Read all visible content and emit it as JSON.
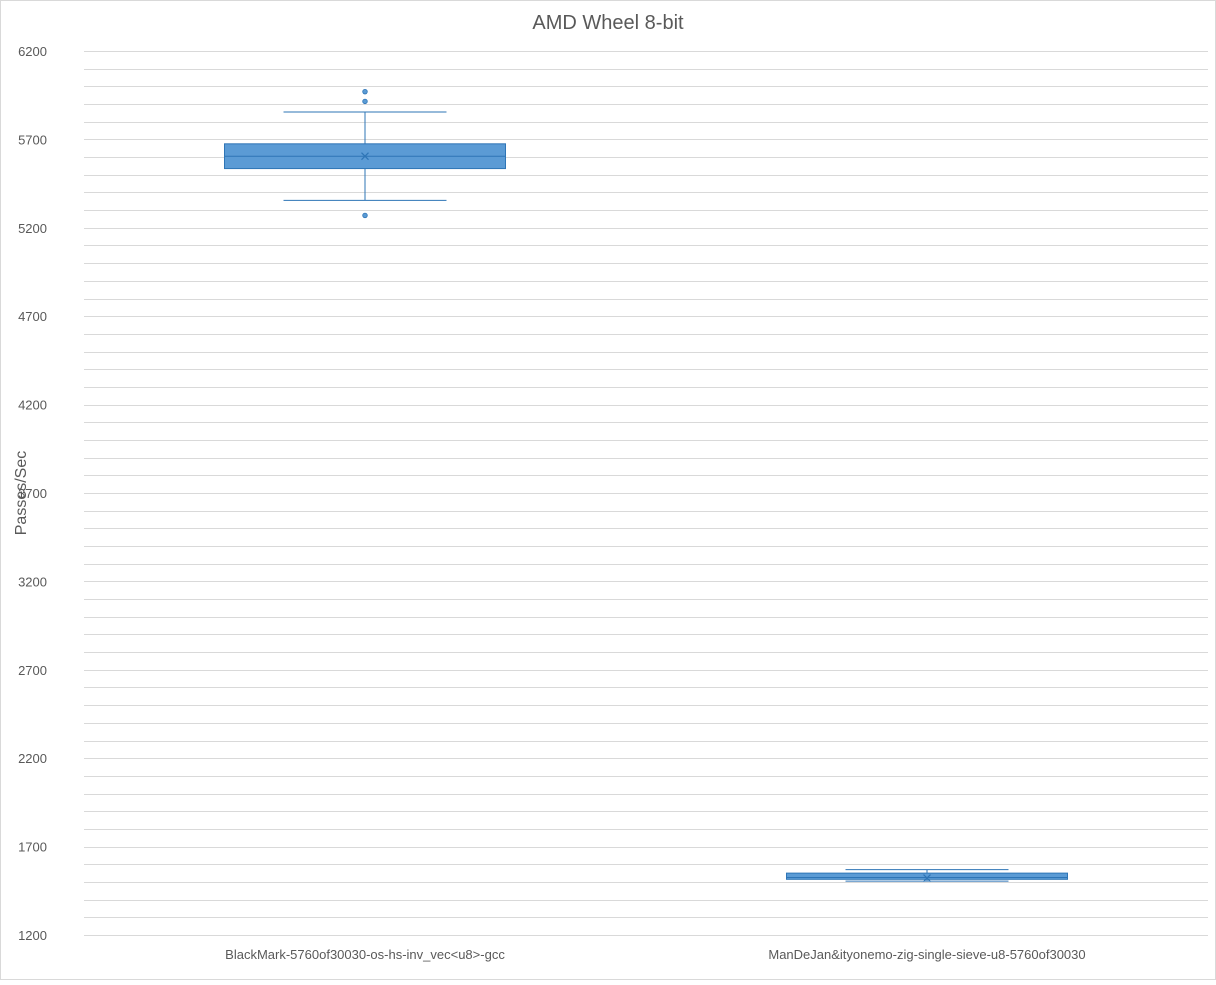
{
  "chart_data": {
    "type": "box",
    "title": "AMD Wheel 8-bit",
    "xlabel": "",
    "ylabel": "Passes/Sec",
    "ylim": [
      1200,
      6200
    ],
    "y_ticks": [
      1200,
      1700,
      2200,
      2700,
      3200,
      3700,
      4200,
      4700,
      5200,
      5700,
      6200
    ],
    "y_minor_step": 100,
    "grid": true,
    "legend": "none",
    "colors": {
      "box_fill": "#5b9bd5",
      "box_stroke": "#2e75b6",
      "grid": "#d9d9d9",
      "text": "#595959"
    },
    "categories": [
      "BlackMark-5760of30030-os-hs-inv_vec<u8>-gcc",
      "ManDeJan&ityonemo-zig-single-sieve-u8-5760of30030"
    ],
    "boxes": [
      {
        "whisker_low": 5355,
        "q1": 5535,
        "median": 5605,
        "mean": 5605,
        "q3": 5675,
        "whisker_high": 5855,
        "outliers": [
          5970,
          5915,
          5270
        ]
      },
      {
        "whisker_low": 1505,
        "q1": 1515,
        "median": 1525,
        "mean": 1522,
        "q3": 1550,
        "whisker_high": 1570,
        "outliers": []
      }
    ]
  }
}
